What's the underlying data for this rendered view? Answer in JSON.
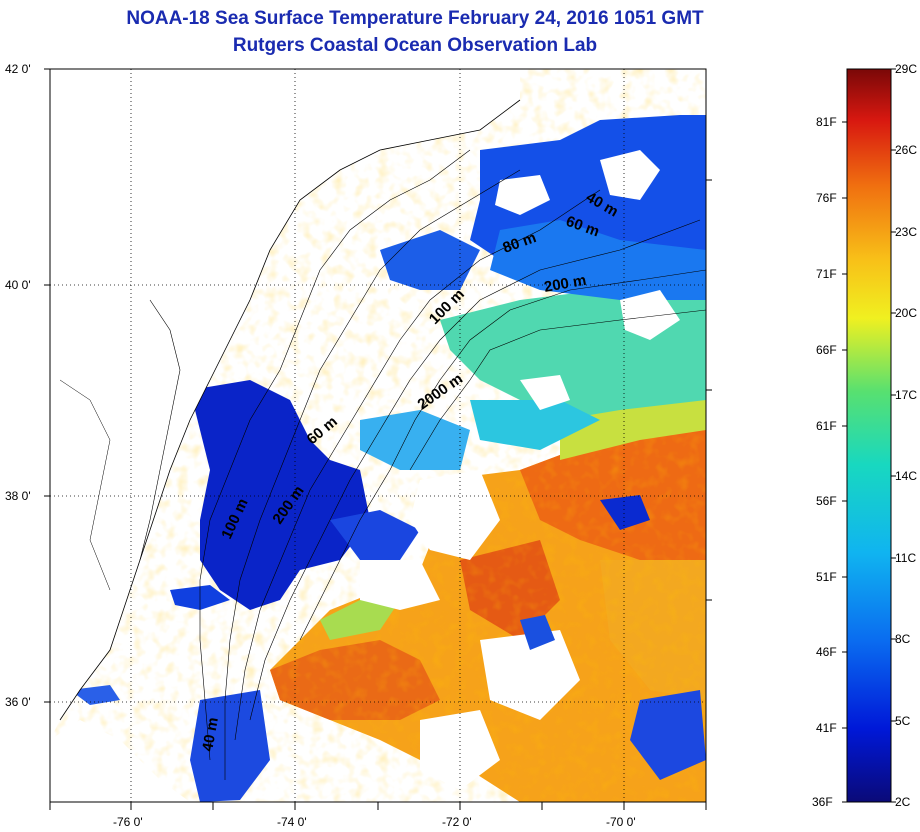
{
  "title_line1": "NOAA-18 Sea Surface Temperature February 24, 2016 1051 GMT",
  "title_line2": "Rutgers Coastal Ocean Observation Lab",
  "axes": {
    "lat_labels": [
      "42 0'",
      "40 0'",
      "38 0'",
      "36 0'"
    ],
    "lon_labels": [
      "-76 0'",
      "-74 0'",
      "-72 0'",
      "-70 0'"
    ]
  },
  "isobaths": {
    "40m_north": "40 m",
    "60m_north": "60 m",
    "80m": "80 m",
    "100m": "100 m",
    "200m": "200 m",
    "2000m": "2000 m",
    "60m_south": "60 m",
    "200m_south": "200 m",
    "100m_south": "100 m",
    "40m_south": "40 m"
  },
  "colorbar": {
    "celsius": [
      "29C",
      "26C",
      "23C",
      "20C",
      "17C",
      "14C",
      "11C",
      "8C",
      "5C",
      "2C"
    ],
    "fahrenheit": [
      "81F",
      "76F",
      "71F",
      "66F",
      "61F",
      "56F",
      "51F",
      "46F",
      "41F",
      "36F"
    ]
  }
}
